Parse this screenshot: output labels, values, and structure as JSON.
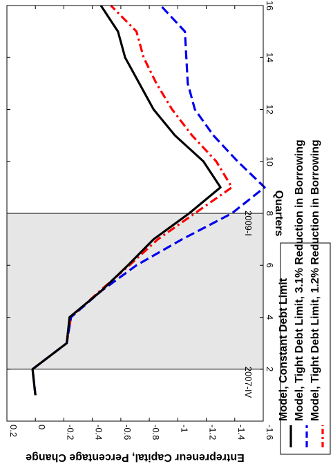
{
  "chart_data": {
    "type": "line",
    "orientation": "rotated 90 degrees clockwise",
    "xlabel": "Quarters",
    "ylabel": "Entrepreneur Capital, Percentage Change",
    "xlim": [
      0,
      16
    ],
    "ylim": [
      -1.6,
      0.2
    ],
    "xticks": [
      2,
      4,
      6,
      8,
      10,
      12,
      14,
      16
    ],
    "yticks": [
      0.2,
      0,
      -0.2,
      -0.4,
      -0.6,
      -0.8,
      -1,
      -1.2,
      -1.4,
      -1.6
    ],
    "shaded_region": {
      "x": [
        2,
        8
      ],
      "color": "#e6e6e6"
    },
    "vertical_lines": [
      2,
      8
    ],
    "annotations": [
      {
        "text": "2007-IV",
        "x": 2,
        "y": -1.45
      },
      {
        "text": "2009-I",
        "x": 8,
        "y": -1.45
      }
    ],
    "legend_position": "bottom-right",
    "series": [
      {
        "name": "Model, Tight Debt Limit, 1.2% Reduction in Borrowing",
        "color": "#ff0000",
        "style": "dash-dot",
        "x": [
          1,
          2,
          3,
          4,
          5,
          6,
          7,
          8,
          9,
          10,
          11,
          12,
          13,
          14,
          15,
          16
        ],
        "y": [
          0,
          0.02,
          -0.22,
          -0.25,
          -0.45,
          -0.66,
          -0.86,
          -1.12,
          -1.38,
          -1.27,
          -1.1,
          -0.96,
          -0.85,
          -0.76,
          -0.71,
          -0.53
        ]
      },
      {
        "name": "Model, Tight Debt Limit, 3.1% Reduction in Borrowing",
        "color": "#0000ee",
        "style": "dashed",
        "x": [
          1,
          2,
          3,
          4,
          5,
          6,
          7,
          8,
          9,
          10,
          11,
          12,
          13,
          14,
          15,
          16
        ],
        "y": [
          0,
          0.02,
          -0.22,
          -0.25,
          -0.46,
          -0.71,
          -1.03,
          -1.38,
          -1.61,
          -1.42,
          -1.25,
          -1.12,
          -1.07,
          -1.06,
          -1.05,
          -0.88
        ]
      },
      {
        "name": "Model, Constant Debt Limit",
        "color": "#000000",
        "style": "solid",
        "x": [
          1,
          2,
          3,
          4,
          5,
          6,
          7,
          8,
          9,
          10,
          11,
          12,
          13,
          14,
          15,
          16
        ],
        "y": [
          0,
          0.02,
          -0.22,
          -0.24,
          -0.46,
          -0.65,
          -0.83,
          -1.08,
          -1.3,
          -1.18,
          -0.98,
          -0.83,
          -0.73,
          -0.63,
          -0.58,
          -0.46
        ]
      }
    ]
  }
}
